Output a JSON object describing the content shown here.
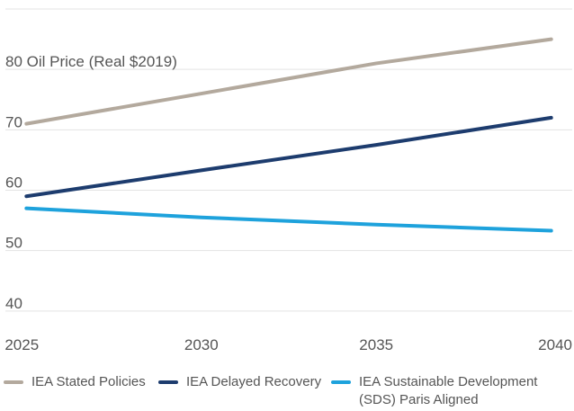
{
  "chart_data": {
    "type": "line",
    "title": "",
    "xlabel": "",
    "ylabel": "Oil Price (Real $2019)",
    "x": [
      2025,
      2030,
      2035,
      2040
    ],
    "xlim": [
      2024.4,
      2040.6
    ],
    "ylim": [
      37,
      90
    ],
    "yticks": [
      40,
      50,
      60,
      70,
      80
    ],
    "grid": true,
    "legend_position": "bottom",
    "series": [
      {
        "name": "IEA Stated Policies",
        "color": "#b3a99d",
        "values": [
          71,
          76,
          81,
          85
        ]
      },
      {
        "name": "IEA Delayed Recovery",
        "color": "#1d3c6e",
        "values": [
          59,
          63.3,
          67.5,
          72
        ]
      },
      {
        "name": "IEA Sustainable Development (SDS) Paris Aligned",
        "color": "#1ea2dc",
        "values": [
          57,
          55.5,
          54.3,
          53.3
        ]
      }
    ]
  },
  "legend": {
    "items": [
      {
        "label": "IEA Stated Policies",
        "color": "#b3a99d"
      },
      {
        "label": "IEA Delayed Recovery",
        "color": "#1d3c6e"
      },
      {
        "label": "IEA Sustainable Development (SDS) Paris Aligned",
        "color": "#1ea2dc"
      }
    ]
  }
}
